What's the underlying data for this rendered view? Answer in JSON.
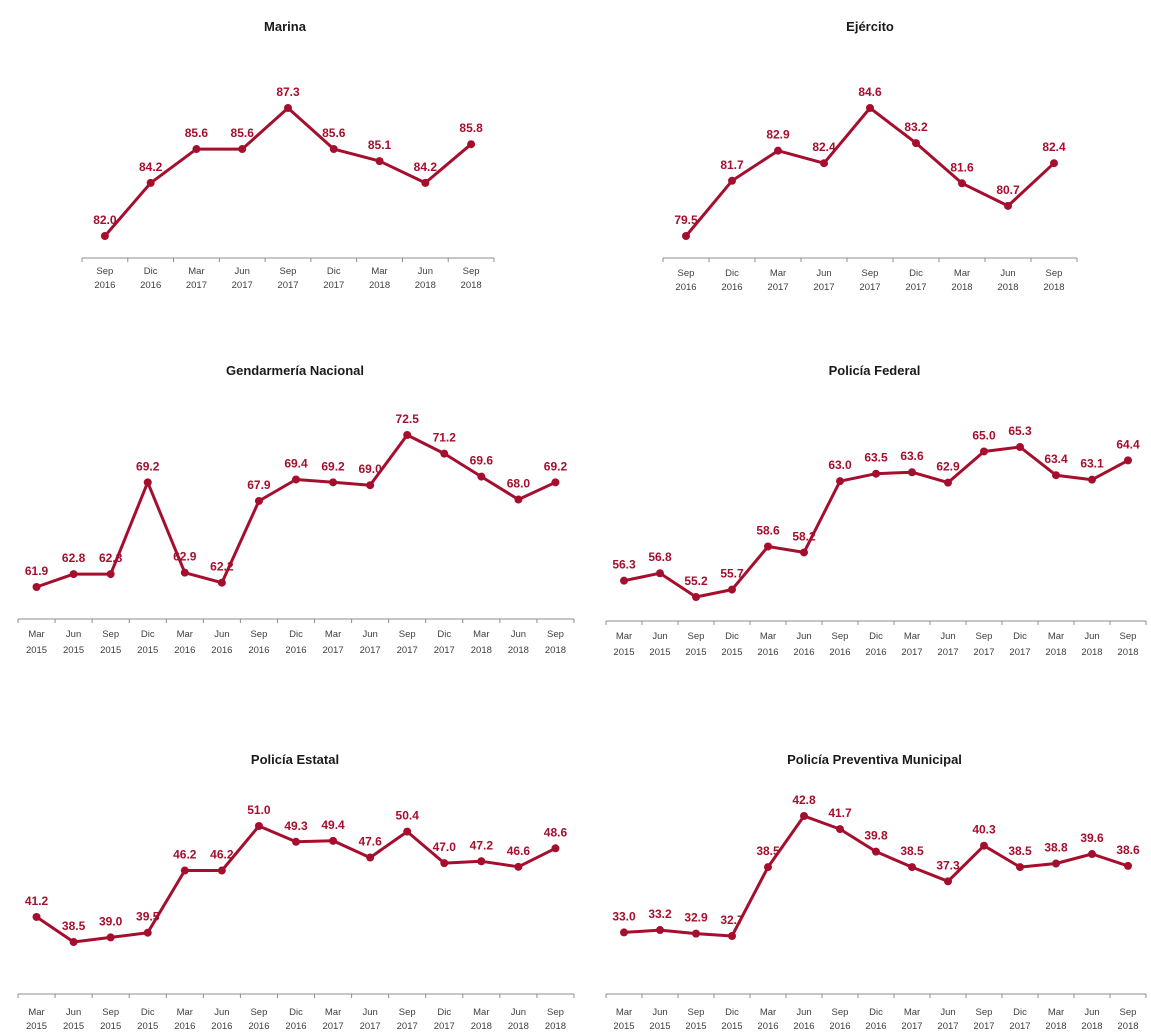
{
  "colors": {
    "series": "#a50f2d",
    "axis": "#8c8c8c"
  },
  "chart_data": [
    {
      "type": "line",
      "title": "Marina",
      "x": [
        "Sep 2016",
        "Dic 2016",
        "Mar 2017",
        "Jun 2017",
        "Sep 2017",
        "Dic 2017",
        "Mar 2018",
        "Jun 2018",
        "Sep 2018"
      ],
      "x_month": [
        "Sep",
        "Dic",
        "Mar",
        "Jun",
        "Sep",
        "Dic",
        "Mar",
        "Jun",
        "Sep"
      ],
      "x_year": [
        "2016",
        "2016",
        "2017",
        "2017",
        "2017",
        "2017",
        "2018",
        "2018",
        "2018"
      ],
      "values": [
        82.0,
        84.2,
        85.6,
        85.6,
        87.3,
        85.6,
        85.1,
        84.2,
        85.8
      ],
      "labels": [
        "82.0",
        "84.2",
        "85.6",
        "85.6",
        "87.3",
        "85.6",
        "85.1",
        "84.2",
        "85.8"
      ],
      "ylim": [
        76,
        90
      ],
      "grid": false,
      "legend": "none"
    },
    {
      "type": "line",
      "title": "Ejército",
      "x": [
        "Sep 2016",
        "Dic 2016",
        "Mar 2017",
        "Jun 2017",
        "Sep 2017",
        "Dic 2017",
        "Mar 2018",
        "Jun 2018",
        "Sep 2018"
      ],
      "x_month": [
        "Sep",
        "Dic",
        "Mar",
        "Jun",
        "Sep",
        "Dic",
        "Mar",
        "Jun",
        "Sep"
      ],
      "x_year": [
        "2016",
        "2016",
        "2017",
        "2017",
        "2017",
        "2017",
        "2018",
        "2018",
        "2018"
      ],
      "values": [
        79.5,
        81.7,
        82.9,
        82.4,
        84.6,
        83.2,
        81.6,
        80.7,
        82.4
      ],
      "labels": [
        "79.5",
        "81.7",
        "82.9",
        "82.4",
        "84.6",
        "83.2",
        "81.6",
        "80.7",
        "82.4"
      ],
      "ylim": [
        76,
        88
      ],
      "grid": false,
      "legend": "none"
    },
    {
      "type": "line",
      "title": "Gendarmería Nacional",
      "x": [
        "Mar 2015",
        "Jun 2015",
        "Sep 2015",
        "Dic 2015",
        "Mar 2016",
        "Jun 2016",
        "Sep 2016",
        "Dic 2016",
        "Mar 2017",
        "Jun 2017",
        "Sep 2017",
        "Dic 2017",
        "Mar 2018",
        "Jun 2018",
        "Sep 2018"
      ],
      "x_month": [
        "Mar",
        "Jun",
        "Sep",
        "Dic",
        "Mar",
        "Jun",
        "Sep",
        "Dic",
        "Mar",
        "Jun",
        "Sep",
        "Dic",
        "Mar",
        "Jun",
        "Sep"
      ],
      "x_year": [
        "2015",
        "2015",
        "2015",
        "2015",
        "2016",
        "2016",
        "2016",
        "2016",
        "2017",
        "2017",
        "2017",
        "2017",
        "2018",
        "2018",
        "2018"
      ],
      "values": [
        61.9,
        62.8,
        62.8,
        69.2,
        62.9,
        62.2,
        67.9,
        69.4,
        69.2,
        69.0,
        72.5,
        71.2,
        69.6,
        68.0,
        69.2
      ],
      "labels": [
        "61.9",
        "62.8",
        "62.8",
        "69.2",
        "62.9",
        "62.2",
        "67.9",
        "69.4",
        "69.2",
        "69.0",
        "72.5",
        "71.2",
        "69.6",
        "68.0",
        "69.2"
      ],
      "ylim": [
        56,
        75
      ],
      "grid": false,
      "legend": "none"
    },
    {
      "type": "line",
      "title": "Policía Federal",
      "x": [
        "Mar 2015",
        "Jun 2015",
        "Sep 2015",
        "Dic 2015",
        "Mar 2016",
        "Jun 2016",
        "Sep 2016",
        "Dic 2016",
        "Mar 2017",
        "Jun 2017",
        "Sep 2017",
        "Dic 2017",
        "Mar 2018",
        "Jun 2018",
        "Sep 2018"
      ],
      "x_month": [
        "Mar",
        "Jun",
        "Sep",
        "Dic",
        "Mar",
        "Jun",
        "Sep",
        "Dic",
        "Mar",
        "Jun",
        "Sep",
        "Dic",
        "Mar",
        "Jun",
        "Sep"
      ],
      "x_year": [
        "2015",
        "2015",
        "2015",
        "2015",
        "2016",
        "2016",
        "2016",
        "2016",
        "2017",
        "2017",
        "2017",
        "2017",
        "2018",
        "2018",
        "2018"
      ],
      "values": [
        56.3,
        56.8,
        55.2,
        55.7,
        58.6,
        58.2,
        63.0,
        63.5,
        63.6,
        62.9,
        65.0,
        65.3,
        63.4,
        63.1,
        64.4
      ],
      "labels": [
        "56.3",
        "56.8",
        "55.2",
        "55.7",
        "58.6",
        "58.2",
        "63.0",
        "63.5",
        "63.6",
        "62.9",
        "65.0",
        "65.3",
        "63.4",
        "63.1",
        "64.4"
      ],
      "ylim": [
        50,
        68
      ],
      "grid": false,
      "legend": "none"
    },
    {
      "type": "line",
      "title": "Policía Estatal",
      "x": [
        "Mar 2015",
        "Jun 2015",
        "Sep 2015",
        "Dic 2015",
        "Mar 2016",
        "Jun 2016",
        "Sep 2016",
        "Dic 2016",
        "Mar 2017",
        "Jun 2017",
        "Sep 2017",
        "Dic 2017",
        "Mar 2018",
        "Jun 2018",
        "Sep 2018"
      ],
      "x_month": [
        "Mar",
        "Jun",
        "Sep",
        "Dic",
        "Mar",
        "Jun",
        "Sep",
        "Dic",
        "Mar",
        "Jun",
        "Sep",
        "Dic",
        "Mar",
        "Jun",
        "Sep"
      ],
      "x_year": [
        "2015",
        "2015",
        "2015",
        "2015",
        "2016",
        "2016",
        "2016",
        "2016",
        "2017",
        "2017",
        "2017",
        "2017",
        "2018",
        "2018",
        "2018"
      ],
      "values": [
        41.2,
        38.5,
        39.0,
        39.5,
        46.2,
        46.2,
        51.0,
        49.3,
        49.4,
        47.6,
        50.4,
        47.0,
        47.2,
        46.6,
        48.6
      ],
      "labels": [
        "41.2",
        "38.5",
        "39.0",
        "39.5",
        "46.2",
        "46.2",
        "51.0",
        "49.3",
        "49.4",
        "47.6",
        "50.4",
        "47.0",
        "47.2",
        "46.6",
        "48.6"
      ],
      "ylim": [
        32,
        54
      ],
      "grid": false,
      "legend": "none"
    },
    {
      "type": "line",
      "title": "Policía Preventiva Municipal",
      "x": [
        "Mar 2015",
        "Jun 2015",
        "Sep 2015",
        "Dic 2015",
        "Mar 2016",
        "Jun 2016",
        "Sep 2016",
        "Dic 2016",
        "Mar 2017",
        "Jun 2017",
        "Sep 2017",
        "Dic 2017",
        "Mar 2018",
        "Jun 2018",
        "Sep 2018"
      ],
      "x_month": [
        "Mar",
        "Jun",
        "Sep",
        "Dic",
        "Mar",
        "Jun",
        "Sep",
        "Dic",
        "Mar",
        "Jun",
        "Sep",
        "Dic",
        "Mar",
        "Jun",
        "Sep"
      ],
      "x_year": [
        "2015",
        "2015",
        "2015",
        "2015",
        "2016",
        "2016",
        "2016",
        "2016",
        "2017",
        "2017",
        "2017",
        "2017",
        "2018",
        "2018",
        "2018"
      ],
      "values": [
        33.0,
        33.2,
        32.9,
        32.7,
        38.5,
        42.8,
        41.7,
        39.8,
        38.5,
        37.3,
        40.3,
        38.5,
        38.8,
        39.6,
        38.6
      ],
      "labels": [
        "33.0",
        "33.2",
        "32.9",
        "32.7",
        "38.5",
        "42.8",
        "41.7",
        "39.8",
        "38.5",
        "37.3",
        "40.3",
        "38.5",
        "38.8",
        "39.6",
        "38.6"
      ],
      "ylim": [
        26,
        46
      ],
      "grid": false,
      "legend": "none"
    }
  ]
}
